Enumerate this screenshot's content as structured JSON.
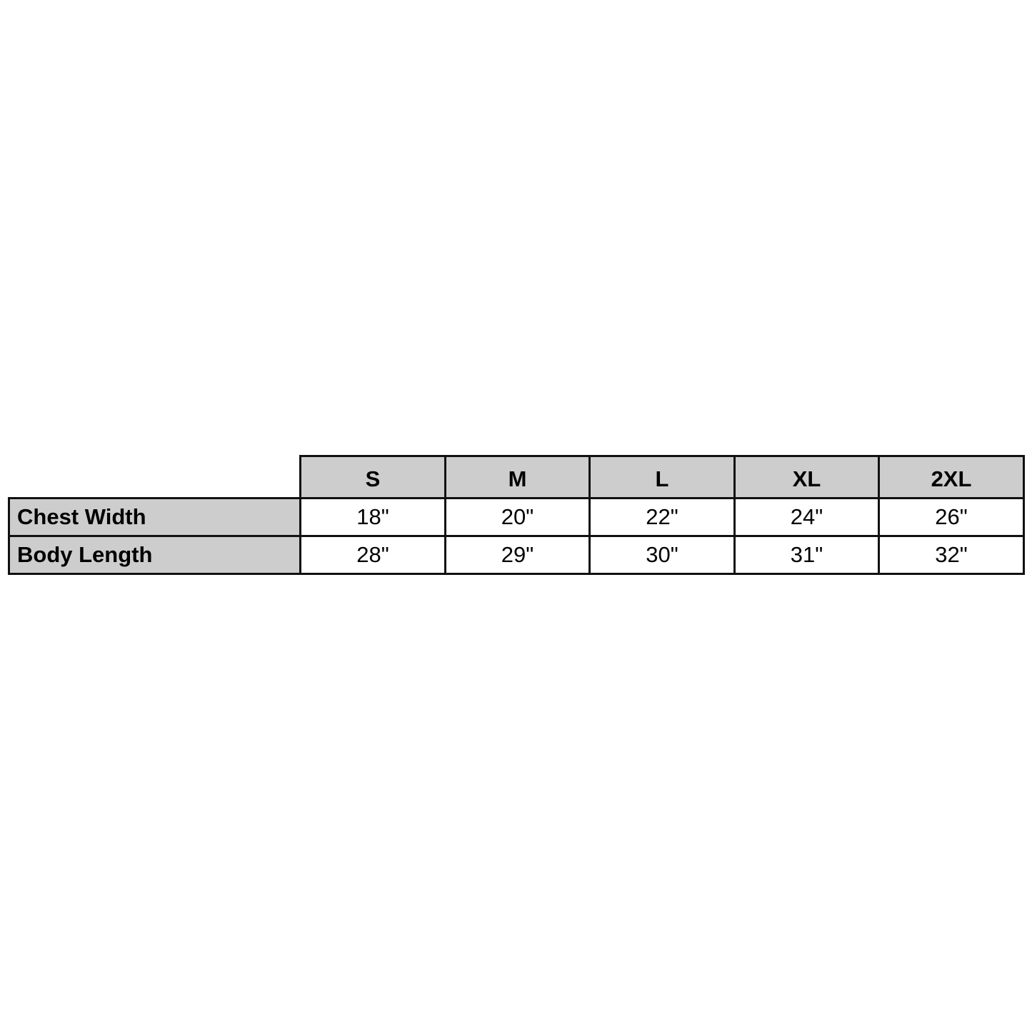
{
  "size_chart": {
    "sizes": [
      "S",
      "M",
      "L",
      "XL",
      "2XL"
    ],
    "rows": [
      {
        "label": "Chest Width",
        "values": [
          "18\"",
          "20\"",
          "22\"",
          "24\"",
          "26\""
        ]
      },
      {
        "label": "Body Length",
        "values": [
          "28\"",
          "29\"",
          "30\"",
          "31\"",
          "32\""
        ]
      }
    ],
    "colors": {
      "header_fill": "#cdcdcd",
      "border": "#111111"
    }
  }
}
